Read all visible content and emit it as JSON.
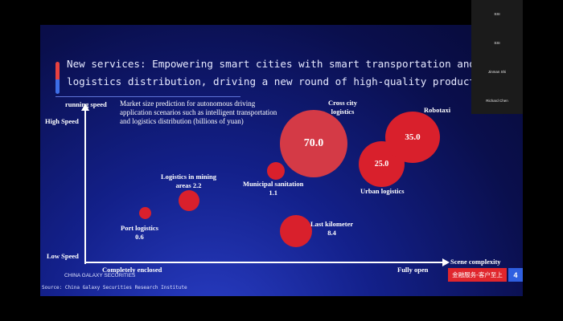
{
  "slide": {
    "title_line1": "New services:  Empowering smart cities with smart transportation and",
    "title_line2": "logistics distribution, driving a new round of high-quality productivity",
    "note": "Market size prediction for autonomous driving application scenarios such as intelligent transportation and logistics distribution (billions of yuan)",
    "y_axis_title": "running speed",
    "y_high": "High Speed",
    "y_low": "Low Speed",
    "x_left": "Completely enclosed",
    "x_right": "Fully open",
    "x_axis_title": "Scene complexity",
    "brand": "CHINA GALAXY SECURITIES",
    "source": "Source: China Galaxy Securities Research Institute",
    "tag": "金融服务-客户至上",
    "page_number": "4",
    "colors": {
      "bubble": "#d9202c",
      "accent_red": "#e8413f",
      "accent_blue": "#3d6ee6",
      "tag": "#e0262d",
      "page_badge": "#2f5fe0"
    }
  },
  "bubbles": {
    "port": {
      "label": "Port logistics",
      "value": "0.6"
    },
    "mining": {
      "label": "Logistics in mining",
      "label2": "areas 2.2"
    },
    "sanitation": {
      "label": "Municipal sanitation",
      "value": "1.1"
    },
    "lastkm": {
      "label": "Last kilometer",
      "value": "8.4"
    },
    "crosscity": {
      "label": "Cross city",
      "label2": "logistics",
      "value": "70.0"
    },
    "urban": {
      "label": "Urban logistics",
      "value": "25.0"
    },
    "robotaxi": {
      "label": "Robotaxi",
      "value": "35.0"
    }
  },
  "participants": [
    "SSI",
    "SSI",
    "Jinman Shi",
    "Richard Chen"
  ]
}
